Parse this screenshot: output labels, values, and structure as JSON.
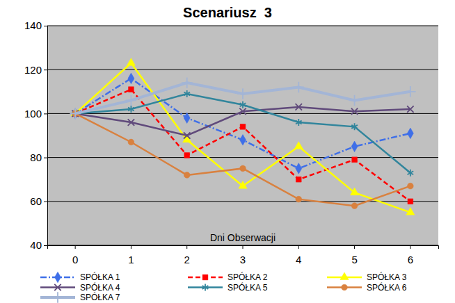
{
  "chart_data": {
    "type": "line",
    "title": "Scenariusz  3",
    "x_label": "Dni Obserwacji",
    "categories": [
      "0",
      "1",
      "2",
      "3",
      "4",
      "5",
      "6"
    ],
    "series": [
      {
        "name": "SPÓŁKA 1",
        "color": "#3f6fe8",
        "marker": "diamond",
        "line_style": "dashdot",
        "values": [
          100,
          116,
          98,
          88,
          75,
          85,
          91
        ]
      },
      {
        "name": "SPÓŁKA 2",
        "color": "#ff0000",
        "marker": "square",
        "line_style": "dashed",
        "values": [
          100,
          111,
          81,
          94,
          70,
          79,
          60
        ]
      },
      {
        "name": "SPÓŁKA 3",
        "color": "#ffff00",
        "marker": "triangle",
        "line_style": "solid",
        "values": [
          100,
          123,
          88,
          67,
          85,
          64,
          55
        ]
      },
      {
        "name": "SPÓŁKA 4",
        "color": "#604a7b",
        "marker": "x",
        "line_style": "solid",
        "values": [
          100,
          96,
          90,
          101,
          103,
          101,
          102
        ]
      },
      {
        "name": "SPÓŁKA 5",
        "color": "#31859c",
        "marker": "star",
        "line_style": "solid",
        "values": [
          100,
          102,
          109,
          104,
          96,
          94,
          73
        ]
      },
      {
        "name": "SPÓŁKA 6",
        "color": "#d9813f",
        "marker": "circle",
        "line_style": "solid",
        "values": [
          100,
          87,
          72,
          75,
          61,
          58,
          67
        ]
      },
      {
        "name": "SPÓŁKA 7",
        "color": "#a3b5d6",
        "marker": "plus",
        "line_style": "solid",
        "values": [
          100,
          106,
          114,
          109,
          112,
          106,
          110
        ]
      }
    ],
    "ylim": [
      40,
      140
    ],
    "yticks": [
      40,
      60,
      80,
      100,
      120,
      140
    ],
    "grid": true,
    "legend": "bottom"
  }
}
